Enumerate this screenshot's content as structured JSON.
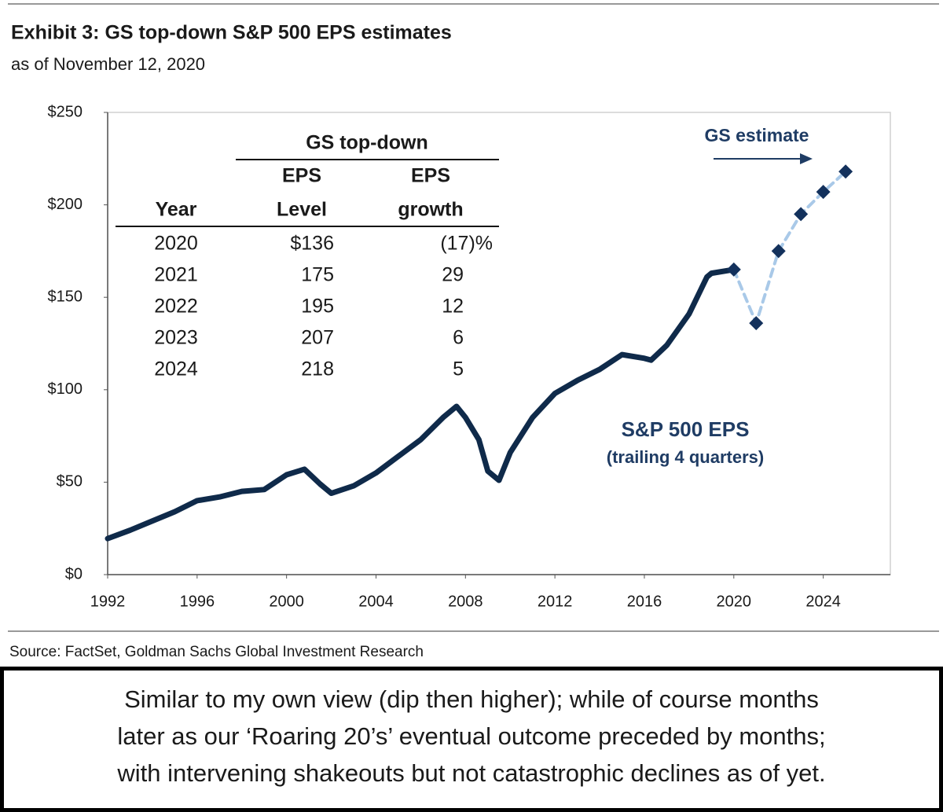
{
  "chart_data": {
    "type": "line",
    "title": "Exhibit 3: GS top-down S&P 500 EPS estimates",
    "subtitle": "as of November 12, 2020",
    "annotation": "(trailing 4 quarters)",
    "series": [
      {
        "name": "S&P 500 EPS",
        "color": "#0f2a4a",
        "x": [
          1992,
          1993,
          1994,
          1995,
          1996,
          1997,
          1998,
          1999,
          2000,
          2000.8,
          2001.5,
          2002,
          2003,
          2004,
          2005,
          2006,
          2007,
          2007.6,
          2008,
          2008.6,
          2009,
          2009.5,
          2010,
          2011,
          2012,
          2013,
          2014,
          2015,
          2016,
          2016.3,
          2017,
          2018,
          2018.8,
          2019,
          2020
        ],
        "values": [
          19.5,
          24,
          29,
          34,
          40,
          42,
          45,
          46,
          54,
          57,
          49,
          44,
          48,
          55,
          64,
          73,
          85,
          91,
          85,
          73,
          56,
          51,
          66,
          85,
          98,
          105,
          111,
          119,
          117,
          116,
          124,
          141,
          161,
          163,
          165
        ]
      },
      {
        "name": "GS estimate",
        "color": "#a9c9e8",
        "marker_color": "#13315c",
        "dashed": true,
        "x": [
          2020,
          2021,
          2022,
          2023,
          2024,
          2025
        ],
        "values": [
          165,
          136,
          175,
          195,
          207,
          218
        ]
      }
    ],
    "xlim": [
      1992,
      2027
    ],
    "xticks": [
      1992,
      1996,
      2000,
      2004,
      2008,
      2012,
      2016,
      2020,
      2024
    ],
    "ylim": [
      0,
      250
    ],
    "yticks": [
      {
        "value": 0,
        "label": "$0"
      },
      {
        "value": 50,
        "label": "$50"
      },
      {
        "value": 100,
        "label": "$100"
      },
      {
        "value": 150,
        "label": "$150"
      },
      {
        "value": 200,
        "label": "$200"
      },
      {
        "value": 250,
        "label": "$250"
      }
    ],
    "grid": false
  },
  "table": {
    "group": "GS top-down",
    "columns": [
      [
        "Year"
      ],
      [
        "EPS",
        "Level"
      ],
      [
        "EPS",
        "growth"
      ]
    ],
    "rows": [
      [
        "2020",
        "$136",
        "(17)%"
      ],
      [
        "2021",
        "175",
        "29"
      ],
      [
        "2022",
        "195",
        "12"
      ],
      [
        "2023",
        "207",
        "6"
      ],
      [
        "2024",
        "218",
        "5"
      ]
    ]
  },
  "source": "Source: FactSet, Goldman Sachs Global Investment Research",
  "note": [
    "Similar to my own view (dip then higher); while of course months",
    "later as our ‘Roaring 20’s’ eventual outcome preceded by months;",
    "with intervening shakeouts but not catastrophic declines as of yet."
  ]
}
